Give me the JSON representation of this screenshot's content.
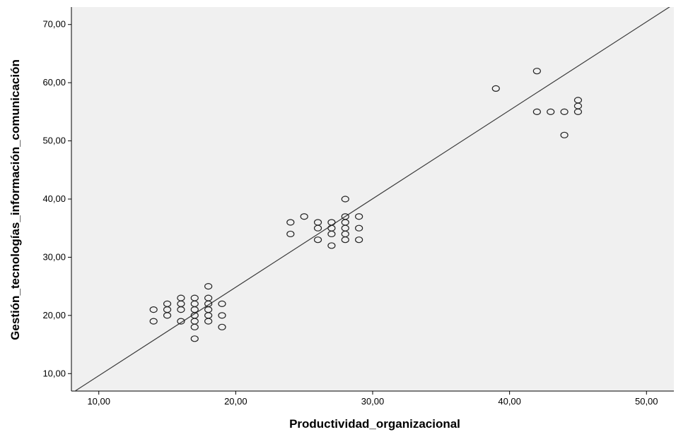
{
  "chart_data": {
    "type": "scatter",
    "xlabel": "Productividad_organizacional",
    "ylabel": "Gestión_tecnologías_información_comunicación",
    "xlim": [
      8,
      52
    ],
    "ylim": [
      7,
      73
    ],
    "x_ticks": [
      "10,00",
      "20,00",
      "30,00",
      "40,00",
      "50,00"
    ],
    "x_tick_values": [
      10,
      20,
      30,
      40,
      50
    ],
    "y_ticks": [
      "10,00",
      "20,00",
      "30,00",
      "40,00",
      "50,00",
      "60,00",
      "70,00"
    ],
    "y_tick_values": [
      10,
      20,
      30,
      40,
      50,
      60,
      70
    ],
    "grid": false,
    "background_color": "#f0f0f0",
    "marker": "open-circle",
    "points": [
      [
        14,
        21
      ],
      [
        14,
        19
      ],
      [
        15,
        22
      ],
      [
        15,
        21
      ],
      [
        15,
        20
      ],
      [
        16,
        23
      ],
      [
        16,
        22
      ],
      [
        16,
        21
      ],
      [
        16,
        19
      ],
      [
        17,
        23
      ],
      [
        17,
        22
      ],
      [
        17,
        21
      ],
      [
        17,
        20
      ],
      [
        17,
        19
      ],
      [
        17,
        18
      ],
      [
        17,
        16
      ],
      [
        18,
        25
      ],
      [
        18,
        23
      ],
      [
        18,
        22
      ],
      [
        18,
        21
      ],
      [
        18,
        20
      ],
      [
        18,
        19
      ],
      [
        19,
        22
      ],
      [
        19,
        20
      ],
      [
        19,
        18
      ],
      [
        24,
        36
      ],
      [
        24,
        34
      ],
      [
        25,
        37
      ],
      [
        26,
        36
      ],
      [
        26,
        35
      ],
      [
        26,
        33
      ],
      [
        27,
        36
      ],
      [
        27,
        35
      ],
      [
        27,
        34
      ],
      [
        27,
        32
      ],
      [
        28,
        40
      ],
      [
        28,
        37
      ],
      [
        28,
        36
      ],
      [
        28,
        35
      ],
      [
        28,
        34
      ],
      [
        28,
        33
      ],
      [
        29,
        37
      ],
      [
        29,
        35
      ],
      [
        29,
        33
      ],
      [
        39,
        59
      ],
      [
        42,
        62
      ],
      [
        42,
        55
      ],
      [
        43,
        55
      ],
      [
        44,
        55
      ],
      [
        44,
        51
      ],
      [
        45,
        57
      ],
      [
        45,
        56
      ],
      [
        45,
        55
      ]
    ],
    "fit_line": {
      "x": [
        8,
        52
      ],
      "y": [
        6.6,
        73.5
      ]
    }
  }
}
